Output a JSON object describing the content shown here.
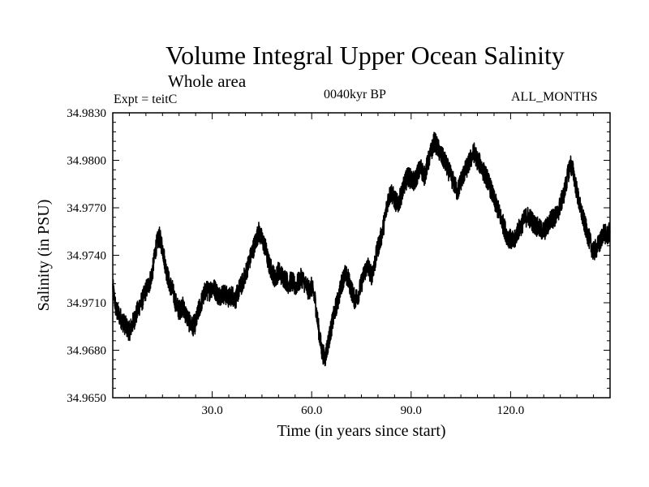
{
  "header": {
    "title": "Volume Integral Upper Ocean Salinity",
    "subtitle": "Whole area",
    "experiment": "Expt = teitC",
    "period": "0040kyr BP",
    "months": "ALL_MONTHS"
  },
  "chart_data": {
    "type": "line",
    "title": "Volume Integral Upper Ocean Salinity",
    "xlabel": "Time (in years since start)",
    "ylabel": "Salinity (in PSU)",
    "xlim": [
      0,
      150
    ],
    "ylim": [
      34.965,
      34.983
    ],
    "xticks": [
      30,
      60,
      90,
      120
    ],
    "xtick_labels": [
      "30.0",
      "60.0",
      "90.0",
      "120.0"
    ],
    "yticks": [
      34.965,
      34.968,
      34.971,
      34.974,
      34.977,
      34.98,
      34.983
    ],
    "ytick_labels": [
      "34.9650",
      "34.9680",
      "34.9710",
      "34.9740",
      "34.9770",
      "34.9800",
      "34.9830"
    ],
    "series": [
      {
        "name": "salinity",
        "color": "#000000",
        "points": [
          [
            0,
            34.972
          ],
          [
            1,
            34.9705
          ],
          [
            2,
            34.9702
          ],
          [
            3,
            34.9698
          ],
          [
            4,
            34.9695
          ],
          [
            5,
            34.9692
          ],
          [
            6,
            34.9697
          ],
          [
            7,
            34.9702
          ],
          [
            8,
            34.9708
          ],
          [
            9,
            34.9712
          ],
          [
            10,
            34.9718
          ],
          [
            11,
            34.9722
          ],
          [
            12,
            34.973
          ],
          [
            13,
            34.9745
          ],
          [
            14,
            34.9752
          ],
          [
            15,
            34.9745
          ],
          [
            16,
            34.9732
          ],
          [
            17,
            34.9723
          ],
          [
            18,
            34.9718
          ],
          [
            19,
            34.971
          ],
          [
            20,
            34.9705
          ],
          [
            21,
            34.9708
          ],
          [
            22,
            34.9703
          ],
          [
            23,
            34.9698
          ],
          [
            24,
            34.9695
          ],
          [
            25,
            34.9697
          ],
          [
            26,
            34.9706
          ],
          [
            27,
            34.9712
          ],
          [
            28,
            34.9718
          ],
          [
            29,
            34.9717
          ],
          [
            30,
            34.972
          ],
          [
            31,
            34.9718
          ],
          [
            32,
            34.9714
          ],
          [
            33,
            34.9716
          ],
          [
            34,
            34.9715
          ],
          [
            35,
            34.9713
          ],
          [
            36,
            34.9715
          ],
          [
            37,
            34.9712
          ],
          [
            38,
            34.9718
          ],
          [
            39,
            34.9722
          ],
          [
            40,
            34.9728
          ],
          [
            41,
            34.9735
          ],
          [
            42,
            34.9742
          ],
          [
            43,
            34.9748
          ],
          [
            44,
            34.9755
          ],
          [
            45,
            34.975
          ],
          [
            46,
            34.9745
          ],
          [
            47,
            34.9735
          ],
          [
            48,
            34.973
          ],
          [
            49,
            34.9725
          ],
          [
            50,
            34.973
          ],
          [
            51,
            34.9727
          ],
          [
            52,
            34.9725
          ],
          [
            53,
            34.9722
          ],
          [
            54,
            34.9724
          ],
          [
            55,
            34.972
          ],
          [
            56,
            34.9723
          ],
          [
            57,
            34.9726
          ],
          [
            58,
            34.9722
          ],
          [
            59,
            34.9718
          ],
          [
            60,
            34.972
          ],
          [
            61,
            34.9712
          ],
          [
            62,
            34.9695
          ],
          [
            63,
            34.968
          ],
          [
            64,
            34.9675
          ],
          [
            65,
            34.9685
          ],
          [
            66,
            34.9695
          ],
          [
            67,
            34.9705
          ],
          [
            68,
            34.9712
          ],
          [
            69,
            34.9722
          ],
          [
            70,
            34.9728
          ],
          [
            71,
            34.9725
          ],
          [
            72,
            34.9718
          ],
          [
            73,
            34.9712
          ],
          [
            74,
            34.9715
          ],
          [
            75,
            34.9722
          ],
          [
            76,
            34.973
          ],
          [
            77,
            34.9733
          ],
          [
            78,
            34.9727
          ],
          [
            79,
            34.9735
          ],
          [
            80,
            34.9745
          ],
          [
            81,
            34.9752
          ],
          [
            82,
            34.9762
          ],
          [
            83,
            34.9775
          ],
          [
            84,
            34.978
          ],
          [
            85,
            34.9775
          ],
          [
            86,
            34.9772
          ],
          [
            87,
            34.9778
          ],
          [
            88,
            34.9785
          ],
          [
            89,
            34.979
          ],
          [
            90,
            34.9788
          ],
          [
            91,
            34.9786
          ],
          [
            92,
            34.9792
          ],
          [
            93,
            34.9795
          ],
          [
            94,
            34.979
          ],
          [
            95,
            34.9798
          ],
          [
            96,
            34.9805
          ],
          [
            97,
            34.9812
          ],
          [
            98,
            34.9808
          ],
          [
            99,
            34.9803
          ],
          [
            100,
            34.98
          ],
          [
            101,
            34.9795
          ],
          [
            102,
            34.979
          ],
          [
            103,
            34.9785
          ],
          [
            104,
            34.978
          ],
          [
            105,
            34.9787
          ],
          [
            106,
            34.9792
          ],
          [
            107,
            34.9796
          ],
          [
            108,
            34.9801
          ],
          [
            109,
            34.9805
          ],
          [
            110,
            34.98
          ],
          [
            111,
            34.9797
          ],
          [
            112,
            34.9792
          ],
          [
            113,
            34.9788
          ],
          [
            114,
            34.9782
          ],
          [
            115,
            34.9775
          ],
          [
            116,
            34.977
          ],
          [
            117,
            34.9764
          ],
          [
            118,
            34.9758
          ],
          [
            119,
            34.9752
          ],
          [
            120,
            34.975
          ],
          [
            121,
            34.9748
          ],
          [
            122,
            34.9755
          ],
          [
            123,
            34.9758
          ],
          [
            124,
            34.9762
          ],
          [
            125,
            34.9765
          ],
          [
            126,
            34.9763
          ],
          [
            127,
            34.976
          ],
          [
            128,
            34.9758
          ],
          [
            129,
            34.9756
          ],
          [
            130,
            34.9755
          ],
          [
            131,
            34.9758
          ],
          [
            132,
            34.9762
          ],
          [
            133,
            34.9764
          ],
          [
            134,
            34.9765
          ],
          [
            135,
            34.9772
          ],
          [
            136,
            34.9778
          ],
          [
            137,
            34.9788
          ],
          [
            138,
            34.9798
          ],
          [
            139,
            34.9792
          ],
          [
            140,
            34.978
          ],
          [
            141,
            34.977
          ],
          [
            142,
            34.9762
          ],
          [
            143,
            34.9755
          ],
          [
            144,
            34.9748
          ],
          [
            145,
            34.9742
          ],
          [
            146,
            34.9745
          ],
          [
            147,
            34.9748
          ],
          [
            148,
            34.9755
          ],
          [
            149,
            34.9752
          ],
          [
            150,
            34.9755
          ]
        ]
      }
    ]
  }
}
